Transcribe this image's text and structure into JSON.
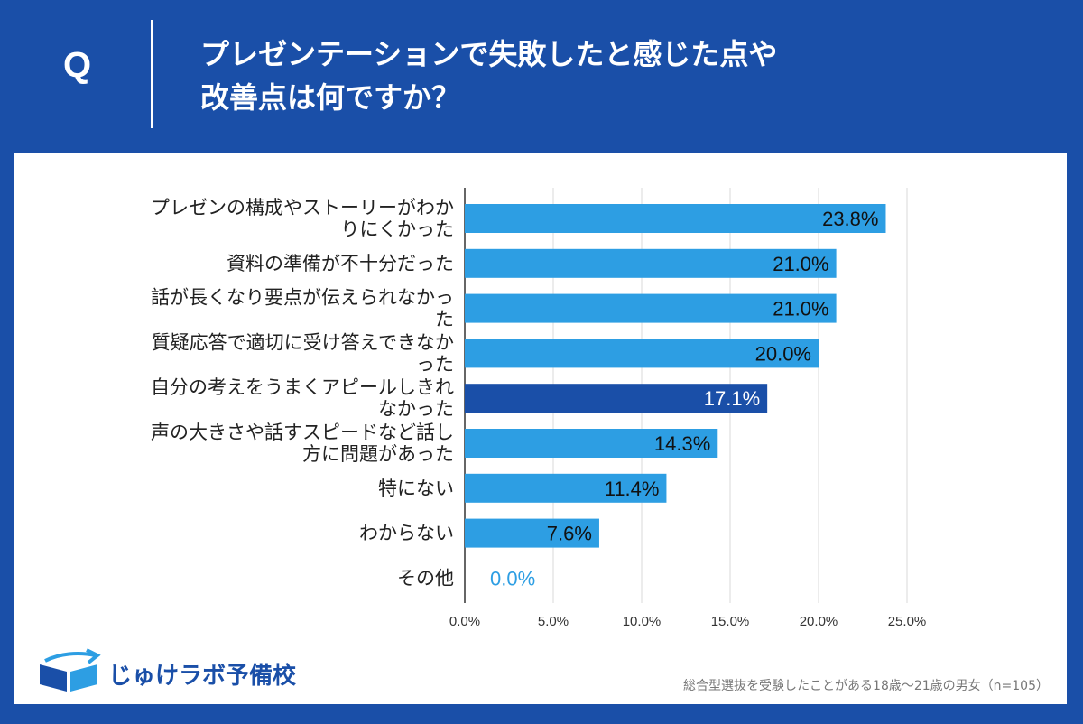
{
  "header": {
    "q_label": "Q",
    "title_line1": "プレゼンテーションで失敗したと感じた点や",
    "title_line2": "改善点は何ですか？"
  },
  "colors": {
    "header_bg": "#1a4fa8",
    "bar": "#2d9ee3",
    "bar_highlight": "#1a4fa8",
    "zero_label": "#2d9ee3"
  },
  "chart_data": {
    "type": "bar",
    "orientation": "horizontal",
    "categories": [
      [
        "プレゼンの構成やストーリーがわか",
        "りにくかった"
      ],
      [
        "資料の準備が不十分だった"
      ],
      [
        "話が長くなり要点が伝えられなかっ",
        "た"
      ],
      [
        "質疑応答で適切に受け答えできなか",
        "った"
      ],
      [
        "自分の考えをうまくアピールしきれ",
        "なかった"
      ],
      [
        "声の大きさや話すスピードなど話し",
        "方に問題があった"
      ],
      [
        "特にない"
      ],
      [
        "わからない"
      ],
      [
        "その他"
      ]
    ],
    "values": [
      23.8,
      21.0,
      21.0,
      20.0,
      17.1,
      14.3,
      11.4,
      7.6,
      0.0
    ],
    "value_labels": [
      "23.8%",
      "21.0%",
      "21.0%",
      "20.0%",
      "17.1%",
      "14.3%",
      "11.4%",
      "7.6%",
      "0.0%"
    ],
    "highlight_index": 4,
    "xlim": [
      0,
      25
    ],
    "xticks": [
      0,
      5,
      10,
      15,
      20,
      25
    ],
    "xtick_labels": [
      "0.0%",
      "5.0%",
      "10.0%",
      "15.0%",
      "20.0%",
      "25.0%"
    ],
    "grid": true,
    "title": "",
    "xlabel": "",
    "ylabel": ""
  },
  "branding": {
    "logo_icon": "open-book-icon",
    "logo_text": "じゅけラボ予備校"
  },
  "footnote": "総合型選抜を受験したことがある18歳～21歳の男女（n=105）"
}
